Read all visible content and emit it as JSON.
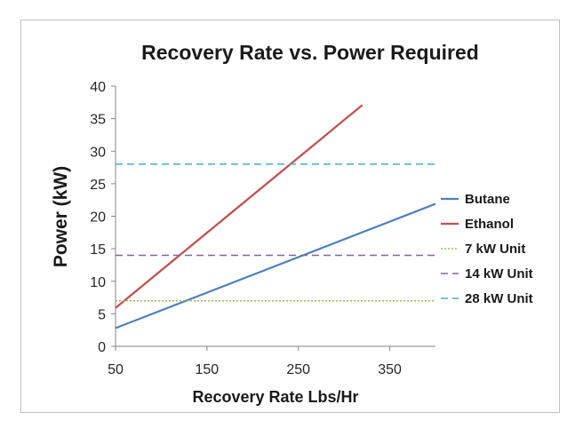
{
  "chart_data": {
    "type": "line",
    "title": "Recovery Rate vs. Power Required",
    "xlabel": "Recovery Rate Lbs/Hr",
    "ylabel": "Power (kW)",
    "xlim": [
      50,
      400
    ],
    "ylim": [
      0,
      40
    ],
    "x_ticks": [
      50,
      150,
      250,
      350
    ],
    "y_ticks": [
      0,
      5,
      10,
      15,
      20,
      25,
      30,
      35,
      40
    ],
    "grid": false,
    "legend_position": "right",
    "series": [
      {
        "name": "Butane",
        "color": "#4f81bd",
        "style": "solid",
        "x": [
          50,
          400
        ],
        "y": [
          2.8,
          21.9
        ]
      },
      {
        "name": "Ethanol",
        "color": "#c0504d",
        "style": "solid",
        "x": [
          50,
          320
        ],
        "y": [
          5.9,
          37.1
        ]
      },
      {
        "name": "7 kW Unit",
        "color": "#9bbb59",
        "style": "dotted",
        "x": [
          50,
          400
        ],
        "y": [
          7,
          7
        ]
      },
      {
        "name": "14 kW Unit",
        "color": "#8064a2",
        "style": "dashed",
        "x": [
          50,
          400
        ],
        "y": [
          14,
          14
        ]
      },
      {
        "name": "28 kW Unit",
        "color": "#4bacc6",
        "style": "dashed",
        "x": [
          50,
          400
        ],
        "y": [
          28,
          28
        ]
      }
    ]
  }
}
